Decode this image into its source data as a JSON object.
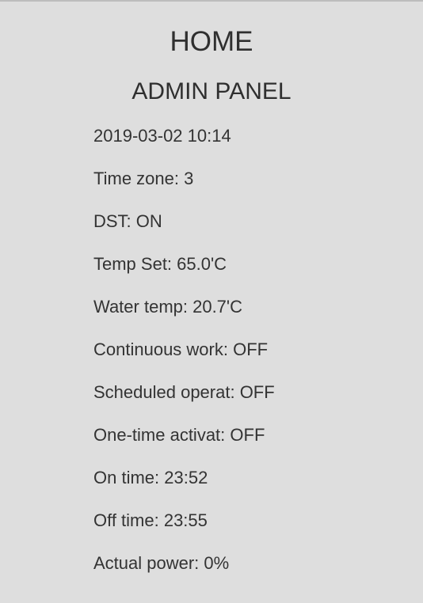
{
  "header": {
    "home_label": "HOME",
    "title": "ADMIN PANEL"
  },
  "status": {
    "items": [
      "2019-03-02 10:14",
      "Time zone: 3",
      "DST: ON",
      "Temp Set: 65.0'C",
      "Water temp: 20.7'C",
      "Continuous work: OFF",
      "Scheduled operat: OFF",
      "One-time activat: OFF",
      "On time: 23:52",
      "Off time: 23:55",
      "Actual power: 0%"
    ]
  }
}
